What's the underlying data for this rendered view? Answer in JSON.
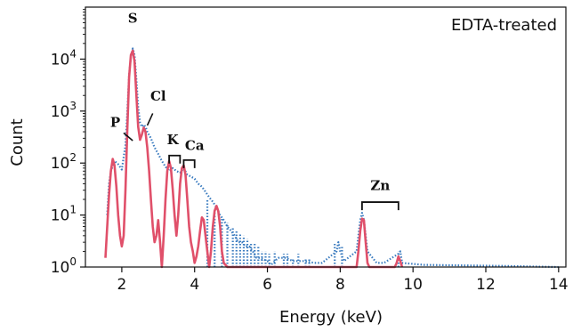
{
  "chart_data": {
    "type": "line",
    "title": "",
    "corner_label": "EDTA-treated",
    "xlabel": "Energy (keV)",
    "ylabel": "Count",
    "xlim": [
      1.0,
      14.2
    ],
    "ylim": [
      1,
      100000
    ],
    "yscale": "log",
    "x_ticks": [
      2,
      4,
      6,
      8,
      10,
      12,
      14
    ],
    "x_tick_labels": [
      "2",
      "4",
      "6",
      "8",
      "10",
      "12",
      "14"
    ],
    "y_ticks": [
      1,
      10,
      100,
      1000,
      10000
    ],
    "y_tick_labels": [
      {
        "base": "10",
        "exp": "0"
      },
      {
        "base": "10",
        "exp": "1"
      },
      {
        "base": "10",
        "exp": "2"
      },
      {
        "base": "10",
        "exp": "3"
      },
      {
        "base": "10",
        "exp": "4"
      }
    ],
    "grid": false,
    "series": [
      {
        "style": "dotted",
        "color": "#3a7bbf",
        "points": [
          [
            1.6,
            10
          ],
          [
            1.65,
            40
          ],
          [
            1.7,
            70
          ],
          [
            1.8,
            110
          ],
          [
            1.9,
            95
          ],
          [
            2.0,
            75
          ],
          [
            2.1,
            220
          ],
          [
            2.15,
            900
          ],
          [
            2.2,
            5000
          ],
          [
            2.25,
            11000
          ],
          [
            2.3,
            16000
          ],
          [
            2.35,
            12000
          ],
          [
            2.4,
            4000
          ],
          [
            2.45,
            1200
          ],
          [
            2.5,
            600
          ],
          [
            2.55,
            500
          ],
          [
            2.6,
            550
          ],
          [
            2.65,
            500
          ],
          [
            2.7,
            400
          ],
          [
            2.8,
            300
          ],
          [
            2.9,
            200
          ],
          [
            3.0,
            150
          ],
          [
            3.1,
            110
          ],
          [
            3.2,
            85
          ],
          [
            3.3,
            70
          ],
          [
            3.4,
            80
          ],
          [
            3.5,
            70
          ],
          [
            3.6,
            65
          ],
          [
            3.7,
            80
          ],
          [
            3.8,
            60
          ],
          [
            3.9,
            55
          ],
          [
            4.0,
            50
          ],
          [
            4.1,
            40
          ],
          [
            4.2,
            35
          ],
          [
            4.3,
            28
          ],
          [
            4.4,
            22
          ],
          [
            4.5,
            18
          ],
          [
            4.6,
            14
          ],
          [
            4.7,
            10
          ],
          [
            4.8,
            8
          ],
          [
            4.9,
            6
          ],
          [
            5.0,
            5
          ],
          [
            5.1,
            4
          ],
          [
            5.2,
            3
          ],
          [
            5.3,
            3
          ],
          [
            5.4,
            2.5
          ],
          [
            5.5,
            2.5
          ],
          [
            5.6,
            2
          ],
          [
            5.7,
            1.5
          ],
          [
            5.8,
            1.5
          ],
          [
            6.0,
            1.3
          ],
          [
            6.1,
            1.1
          ],
          [
            6.3,
            1.5
          ],
          [
            6.5,
            1.5
          ],
          [
            6.7,
            1.3
          ],
          [
            7.0,
            1.3
          ],
          [
            7.3,
            1.2
          ],
          [
            7.5,
            1.2
          ],
          [
            7.9,
            2
          ],
          [
            7.95,
            3
          ],
          [
            8.0,
            2
          ],
          [
            8.1,
            1.3
          ],
          [
            8.45,
            2
          ],
          [
            8.5,
            4
          ],
          [
            8.55,
            8
          ],
          [
            8.6,
            11
          ],
          [
            8.65,
            8
          ],
          [
            8.7,
            4
          ],
          [
            8.75,
            2
          ],
          [
            9.0,
            1.2
          ],
          [
            9.2,
            1.2
          ],
          [
            9.6,
            1.8
          ],
          [
            9.65,
            2
          ],
          [
            9.7,
            1.2
          ],
          [
            10.3,
            1.1
          ],
          [
            12.5,
            1.05
          ],
          [
            14.0,
            1.0
          ]
        ],
        "spikes": [
          [
            4.35,
            20
          ],
          [
            4.55,
            11
          ],
          [
            4.75,
            9
          ],
          [
            4.9,
            7
          ],
          [
            5.05,
            6
          ],
          [
            5.15,
            5
          ],
          [
            5.25,
            4.5
          ],
          [
            5.35,
            4
          ],
          [
            5.45,
            3.5
          ],
          [
            5.55,
            3
          ],
          [
            5.65,
            3
          ],
          [
            5.75,
            2.5
          ],
          [
            5.85,
            2
          ],
          [
            5.95,
            2
          ],
          [
            6.05,
            1.8
          ],
          [
            6.2,
            2
          ],
          [
            6.45,
            1.8
          ],
          [
            6.55,
            1.8
          ],
          [
            6.7,
            1.5
          ],
          [
            6.85,
            1.8
          ],
          [
            7.05,
            1.5
          ],
          [
            7.15,
            1.5
          ],
          [
            7.85,
            3
          ],
          [
            8.05,
            2.5
          ],
          [
            9.6,
            2
          ]
        ]
      },
      {
        "style": "solid",
        "color": "#e0506a",
        "points": [
          [
            1.55,
            1.5
          ],
          [
            1.6,
            6
          ],
          [
            1.65,
            25
          ],
          [
            1.7,
            70
          ],
          [
            1.75,
            120
          ],
          [
            1.8,
            90
          ],
          [
            1.85,
            35
          ],
          [
            1.9,
            10
          ],
          [
            1.95,
            4
          ],
          [
            2.0,
            2.5
          ],
          [
            2.05,
            4
          ],
          [
            2.1,
            30
          ],
          [
            2.15,
            400
          ],
          [
            2.2,
            4500
          ],
          [
            2.25,
            12000
          ],
          [
            2.3,
            14500
          ],
          [
            2.35,
            9000
          ],
          [
            2.4,
            2000
          ],
          [
            2.45,
            500
          ],
          [
            2.5,
            280
          ],
          [
            2.55,
            350
          ],
          [
            2.6,
            480
          ],
          [
            2.65,
            400
          ],
          [
            2.7,
            200
          ],
          [
            2.75,
            70
          ],
          [
            2.8,
            20
          ],
          [
            2.85,
            6
          ],
          [
            2.9,
            3
          ],
          [
            2.95,
            4
          ],
          [
            3.0,
            8
          ],
          [
            3.05,
            3
          ],
          [
            3.1,
            1
          ],
          [
            3.15,
            4
          ],
          [
            3.2,
            20
          ],
          [
            3.25,
            70
          ],
          [
            3.3,
            110
          ],
          [
            3.35,
            80
          ],
          [
            3.4,
            30
          ],
          [
            3.45,
            10
          ],
          [
            3.5,
            4
          ],
          [
            3.55,
            10
          ],
          [
            3.6,
            40
          ],
          [
            3.65,
            80
          ],
          [
            3.7,
            90
          ],
          [
            3.75,
            60
          ],
          [
            3.8,
            20
          ],
          [
            3.85,
            6
          ],
          [
            3.9,
            3
          ],
          [
            3.95,
            2
          ],
          [
            4.0,
            1.2
          ],
          [
            4.05,
            1.6
          ],
          [
            4.1,
            2.5
          ],
          [
            4.15,
            5
          ],
          [
            4.2,
            9
          ],
          [
            4.25,
            8
          ],
          [
            4.3,
            4
          ],
          [
            4.35,
            2
          ],
          [
            4.4,
            1
          ],
          [
            4.45,
            2
          ],
          [
            4.5,
            6
          ],
          [
            4.55,
            12
          ],
          [
            4.6,
            15
          ],
          [
            4.65,
            12
          ],
          [
            4.7,
            6
          ],
          [
            4.75,
            2
          ],
          [
            4.8,
            1.2
          ],
          [
            4.9,
            1
          ],
          [
            8.45,
            1
          ],
          [
            8.5,
            2
          ],
          [
            8.55,
            5
          ],
          [
            8.6,
            8.5
          ],
          [
            8.65,
            8
          ],
          [
            8.7,
            3
          ],
          [
            8.75,
            1.2
          ],
          [
            8.8,
            1
          ],
          [
            9.5,
            1
          ],
          [
            9.55,
            1.2
          ],
          [
            9.6,
            1.6
          ],
          [
            9.65,
            1.3
          ],
          [
            9.7,
            1
          ]
        ]
      }
    ],
    "annotations": [
      {
        "text": "S",
        "x": 2.3,
        "y": 50000
      },
      {
        "text": "Cl",
        "x": 3.0,
        "y": 1600
      },
      {
        "text": "P",
        "x": 1.82,
        "y": 500
      },
      {
        "text": "K",
        "x": 3.4,
        "y": 230
      },
      {
        "text": "Ca",
        "x": 4.0,
        "y": 180
      },
      {
        "text": "Zn",
        "x": 9.1,
        "y": 30
      }
    ],
    "pointers": [
      {
        "x1": 2.05,
        "y1": 380,
        "x2": 2.3,
        "y2": 270
      },
      {
        "x1": 2.85,
        "y1": 900,
        "x2": 2.7,
        "y2": 530
      }
    ],
    "brackets": [
      {
        "x1": 3.3,
        "x2": 3.6,
        "y": 110
      },
      {
        "x1": 3.7,
        "x2": 4.0,
        "y": 90
      },
      {
        "x1": 8.6,
        "x2": 9.6,
        "y": 14
      }
    ]
  }
}
